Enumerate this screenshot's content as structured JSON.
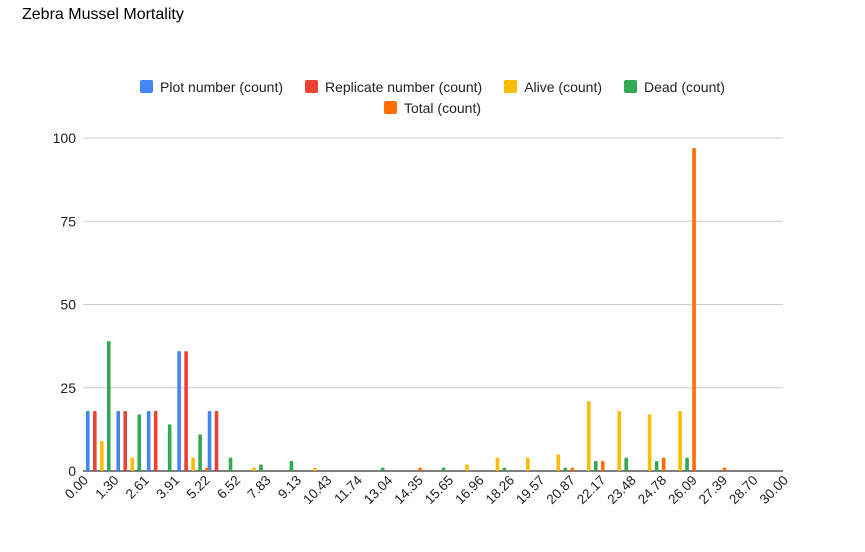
{
  "chart_data": {
    "type": "bar",
    "title": "Zebra Mussel Mortality",
    "xlabel": "",
    "ylabel": "",
    "ylim": [
      0,
      100
    ],
    "yticks": [
      0,
      25,
      50,
      75,
      100
    ],
    "legend_position": "top",
    "grid": true,
    "x_tick_labels": [
      "0.00",
      "1.30",
      "2.61",
      "3.91",
      "5.22",
      "6.52",
      "7.83",
      "9.13",
      "10.43",
      "11.74",
      "13.04",
      "14.35",
      "15.65",
      "16.96",
      "18.26",
      "19.57",
      "20.87",
      "22.17",
      "23.48",
      "24.78",
      "26.09",
      "27.39",
      "28.70",
      "30.00"
    ],
    "series": [
      {
        "name": "Plot number (count)",
        "color": "#4285F4",
        "values": [
          18,
          18,
          18,
          36,
          18,
          0,
          0,
          0,
          0,
          0,
          0,
          0,
          0,
          0,
          0,
          0,
          0,
          0,
          0,
          0,
          0,
          0,
          0
        ]
      },
      {
        "name": "Replicate number (count)",
        "color": "#EA4335",
        "values": [
          18,
          18,
          18,
          36,
          18,
          0,
          0,
          0,
          0,
          0,
          0,
          0,
          0,
          0,
          0,
          0,
          0,
          0,
          0,
          0,
          0,
          0,
          0
        ]
      },
      {
        "name": "Alive (count)",
        "color": "#FBBC04",
        "values": [
          9,
          4,
          0,
          4,
          0,
          1,
          0,
          1,
          0,
          0,
          0,
          0,
          2,
          4,
          4,
          5,
          21,
          18,
          17,
          18,
          0,
          0,
          0
        ]
      },
      {
        "name": "Dead (count)",
        "color": "#34A853",
        "values": [
          39,
          17,
          14,
          11,
          4,
          2,
          3,
          0,
          0,
          1,
          0,
          1,
          0,
          1,
          0,
          1,
          3,
          4,
          3,
          4,
          0,
          0,
          0
        ]
      },
      {
        "name": "Total (count)",
        "color": "#FF6D01",
        "values": [
          0,
          0,
          0,
          1,
          0,
          0,
          0,
          0,
          0,
          0,
          1,
          0,
          0,
          0,
          0,
          1,
          3,
          0,
          4,
          97,
          1,
          0,
          0
        ]
      }
    ]
  }
}
